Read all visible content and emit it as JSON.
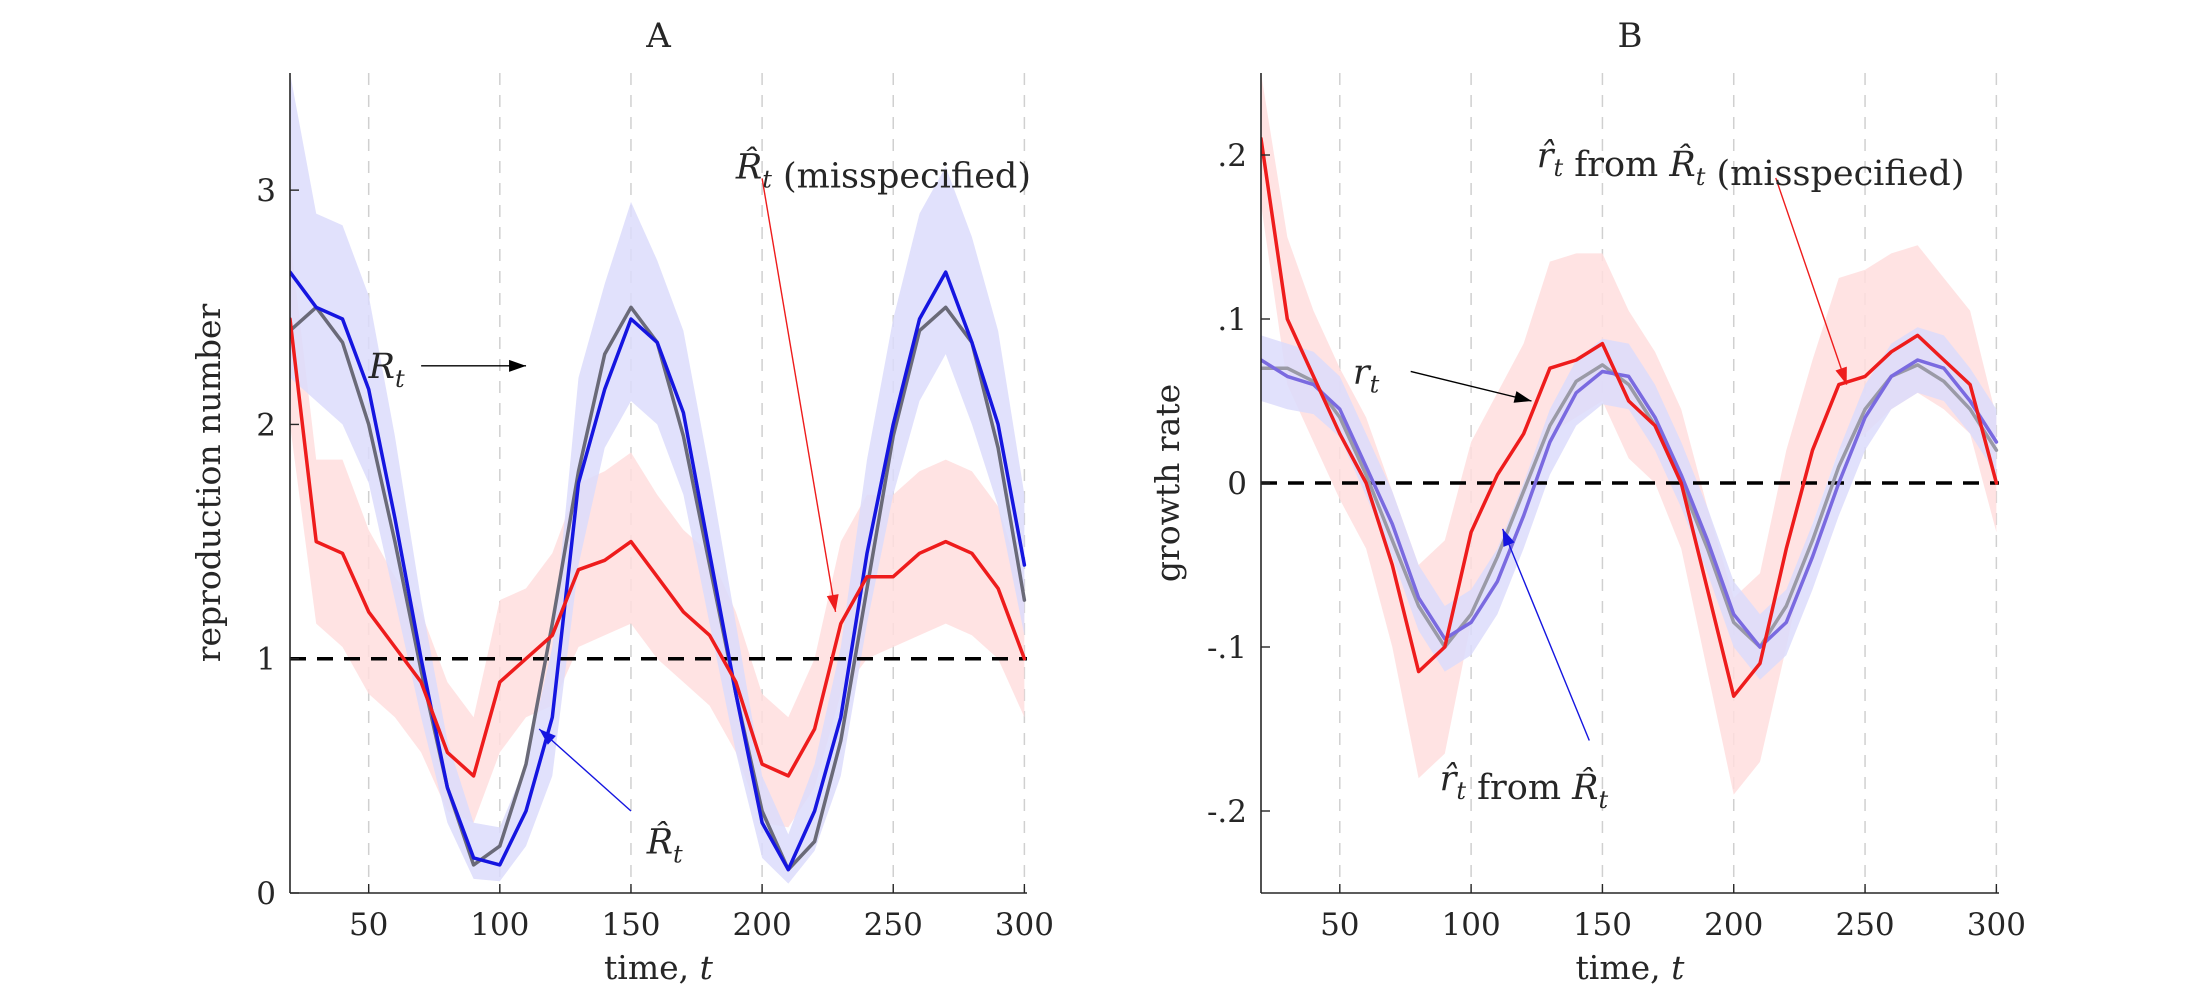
{
  "chart_data": [
    {
      "panel": "A",
      "type": "line",
      "title": "A",
      "xlabel": "time, t",
      "ylabel": "reproduction number",
      "xlim": [
        20,
        301
      ],
      "ylim": [
        0,
        3.5
      ],
      "xticks": [
        50,
        100,
        150,
        200,
        250,
        300
      ],
      "yticks": [
        0,
        1,
        2,
        3
      ],
      "vgrid": [
        50,
        100,
        150,
        200,
        250,
        300
      ],
      "grid": "dashed vertical lines",
      "reference_line": 1,
      "colors": {
        "true": "#6a6a78",
        "estimate": "#1515e0",
        "misspecified": "#ee1c1c",
        "estimate_band": "#dcdcfb",
        "misspecified_band": "#ffdede",
        "reference": "#000000"
      },
      "annotations": [
        {
          "text": "R_t",
          "target": [
            110,
            2.25
          ],
          "anchor": [
            70,
            2.25
          ],
          "color": "#000000",
          "text_pos": [
            50,
            2.25
          ]
        },
        {
          "text": "R̂_t (misspecified)",
          "target": [
            228,
            1.2
          ],
          "anchor": [
            200,
            3.05
          ],
          "color": "#ee1c1c",
          "text_pos": [
            190,
            3.1
          ]
        },
        {
          "text": "R̂_t",
          "target": [
            115,
            0.7
          ],
          "anchor": [
            150,
            0.35
          ],
          "color": "#1515e0",
          "text_pos": [
            156,
            0.22
          ]
        }
      ],
      "series": [
        {
          "role": "true",
          "x": [
            20,
            30,
            40,
            50,
            60,
            70,
            80,
            90,
            100,
            110,
            120,
            130,
            140,
            150,
            160,
            170,
            180,
            190,
            200,
            210,
            220,
            230,
            240,
            250,
            260,
            270,
            280,
            290,
            300
          ],
          "y": [
            2.4,
            2.5,
            2.35,
            2.0,
            1.5,
            0.95,
            0.45,
            0.12,
            0.2,
            0.55,
            1.15,
            1.8,
            2.3,
            2.5,
            2.35,
            1.95,
            1.4,
            0.85,
            0.35,
            0.1,
            0.22,
            0.65,
            1.3,
            1.95,
            2.4,
            2.5,
            2.35,
            1.9,
            1.25
          ]
        },
        {
          "role": "estimate",
          "x": [
            20,
            30,
            40,
            50,
            60,
            70,
            80,
            90,
            100,
            110,
            120,
            130,
            140,
            150,
            160,
            170,
            180,
            190,
            200,
            210,
            220,
            230,
            240,
            250,
            260,
            270,
            280,
            290,
            300
          ],
          "y": [
            2.65,
            2.5,
            2.45,
            2.15,
            1.6,
            1.0,
            0.45,
            0.15,
            0.12,
            0.35,
            0.75,
            1.75,
            2.15,
            2.45,
            2.35,
            2.05,
            1.45,
            0.85,
            0.3,
            0.1,
            0.35,
            0.75,
            1.45,
            2.0,
            2.45,
            2.65,
            2.35,
            2.0,
            1.4
          ],
          "band_lower": [
            2.2,
            2.1,
            2.0,
            1.75,
            1.25,
            0.75,
            0.3,
            0.06,
            0.05,
            0.2,
            0.5,
            1.4,
            1.9,
            2.1,
            2.0,
            1.7,
            1.15,
            0.6,
            0.15,
            0.04,
            0.18,
            0.5,
            1.15,
            1.7,
            2.1,
            2.3,
            2.0,
            1.65,
            1.1
          ],
          "band_upper": [
            3.5,
            2.9,
            2.85,
            2.55,
            1.95,
            1.25,
            0.65,
            0.3,
            0.28,
            0.55,
            1.05,
            2.2,
            2.6,
            2.95,
            2.7,
            2.4,
            1.8,
            1.15,
            0.5,
            0.25,
            0.55,
            1.05,
            1.85,
            2.45,
            2.9,
            3.1,
            2.8,
            2.4,
            1.7
          ]
        },
        {
          "role": "misspecified",
          "x": [
            20,
            30,
            40,
            50,
            60,
            70,
            80,
            90,
            100,
            110,
            120,
            130,
            140,
            150,
            160,
            170,
            180,
            190,
            200,
            210,
            220,
            230,
            240,
            250,
            260,
            270,
            280,
            290,
            300
          ],
          "y": [
            2.45,
            1.5,
            1.45,
            1.2,
            1.05,
            0.9,
            0.6,
            0.5,
            0.9,
            1.0,
            1.1,
            1.38,
            1.42,
            1.5,
            1.35,
            1.2,
            1.1,
            0.9,
            0.55,
            0.5,
            0.7,
            1.15,
            1.35,
            1.35,
            1.45,
            1.5,
            1.45,
            1.3,
            1.0
          ],
          "band_lower": [
            2.0,
            1.15,
            1.05,
            0.85,
            0.75,
            0.6,
            0.35,
            0.3,
            0.6,
            0.75,
            0.8,
            1.05,
            1.1,
            1.15,
            1.0,
            0.9,
            0.8,
            0.6,
            0.3,
            0.28,
            0.45,
            0.85,
            1.0,
            1.05,
            1.1,
            1.15,
            1.1,
            1.0,
            0.75
          ],
          "band_upper": [
            2.8,
            1.85,
            1.85,
            1.55,
            1.35,
            1.2,
            0.9,
            0.75,
            1.25,
            1.3,
            1.45,
            1.75,
            1.8,
            1.88,
            1.7,
            1.55,
            1.45,
            1.2,
            0.85,
            0.75,
            1.0,
            1.5,
            1.7,
            1.7,
            1.8,
            1.85,
            1.8,
            1.65,
            1.3
          ]
        }
      ]
    },
    {
      "panel": "B",
      "type": "line",
      "title": "B",
      "xlabel": "time, t",
      "ylabel": "growth rate",
      "xlim": [
        20,
        301
      ],
      "ylim": [
        -0.25,
        0.25
      ],
      "xticks": [
        50,
        100,
        150,
        200,
        250,
        300
      ],
      "yticks": [
        -0.2,
        -0.1,
        0,
        0.1,
        0.2
      ],
      "vgrid": [
        50,
        100,
        150,
        200,
        250,
        300
      ],
      "grid": "dashed vertical lines",
      "reference_line": 0,
      "colors": {
        "true": "#9a9aa6",
        "estimate": "#7a6ae0",
        "misspecified": "#ee1c1c",
        "estimate_band": "#dcdcfb",
        "misspecified_band": "#ffdede",
        "reference": "#000000"
      },
      "annotations": [
        {
          "text": "r_t",
          "target": [
            123,
            0.05
          ],
          "anchor": [
            77,
            0.068
          ],
          "color": "#000000",
          "text_pos": [
            55,
            0.068
          ]
        },
        {
          "text": "r̂_t from R̂_t (misspecified)",
          "target": [
            243,
            0.06
          ],
          "anchor": [
            216,
            0.186
          ],
          "color": "#ee1c1c",
          "text_pos": [
            125,
            0.2
          ]
        },
        {
          "text": "r̂_t from R̂_t",
          "target": [
            112,
            -0.028
          ],
          "anchor": [
            145,
            -0.157
          ],
          "color": "#1515e0",
          "text_pos": [
            88,
            -0.18
          ]
        }
      ],
      "series": [
        {
          "role": "true",
          "x": [
            20,
            30,
            40,
            50,
            60,
            70,
            80,
            90,
            100,
            110,
            120,
            130,
            140,
            150,
            160,
            170,
            180,
            190,
            200,
            210,
            220,
            230,
            240,
            250,
            260,
            270,
            280,
            290,
            300
          ],
          "y": [
            0.07,
            0.07,
            0.062,
            0.04,
            0.005,
            -0.035,
            -0.075,
            -0.1,
            -0.08,
            -0.045,
            -0.005,
            0.035,
            0.062,
            0.072,
            0.06,
            0.035,
            0.0,
            -0.04,
            -0.085,
            -0.1,
            -0.075,
            -0.035,
            0.01,
            0.045,
            0.065,
            0.072,
            0.062,
            0.045,
            0.02
          ]
        },
        {
          "role": "estimate",
          "x": [
            20,
            30,
            40,
            50,
            60,
            70,
            80,
            90,
            100,
            110,
            120,
            130,
            140,
            150,
            160,
            170,
            180,
            190,
            200,
            210,
            220,
            230,
            240,
            250,
            260,
            270,
            280,
            290,
            300
          ],
          "y": [
            0.075,
            0.065,
            0.06,
            0.045,
            0.01,
            -0.025,
            -0.07,
            -0.095,
            -0.085,
            -0.06,
            -0.02,
            0.025,
            0.055,
            0.068,
            0.065,
            0.04,
            0.005,
            -0.035,
            -0.08,
            -0.1,
            -0.085,
            -0.045,
            0.0,
            0.04,
            0.065,
            0.075,
            0.07,
            0.05,
            0.025
          ],
          "band_lower": [
            0.05,
            0.045,
            0.042,
            0.028,
            -0.008,
            -0.045,
            -0.09,
            -0.115,
            -0.105,
            -0.08,
            -0.04,
            0.005,
            0.035,
            0.048,
            0.045,
            0.02,
            -0.015,
            -0.055,
            -0.1,
            -0.12,
            -0.105,
            -0.065,
            -0.02,
            0.02,
            0.045,
            0.055,
            0.05,
            0.03,
            0.005
          ],
          "band_upper": [
            0.09,
            0.085,
            0.08,
            0.065,
            0.03,
            -0.005,
            -0.05,
            -0.075,
            -0.065,
            -0.04,
            0.0,
            0.045,
            0.075,
            0.088,
            0.085,
            0.06,
            0.025,
            -0.015,
            -0.06,
            -0.08,
            -0.065,
            -0.025,
            0.02,
            0.06,
            0.085,
            0.095,
            0.09,
            0.07,
            0.045
          ]
        },
        {
          "role": "misspecified",
          "x": [
            20,
            30,
            40,
            50,
            60,
            70,
            80,
            90,
            100,
            110,
            120,
            130,
            140,
            150,
            160,
            170,
            180,
            190,
            200,
            210,
            220,
            230,
            240,
            250,
            260,
            270,
            280,
            290,
            300
          ],
          "y": [
            0.21,
            0.1,
            0.065,
            0.03,
            0.0,
            -0.05,
            -0.115,
            -0.1,
            -0.03,
            0.005,
            0.03,
            0.07,
            0.075,
            0.085,
            0.05,
            0.035,
            0.0,
            -0.065,
            -0.13,
            -0.11,
            -0.04,
            0.02,
            0.06,
            0.065,
            0.08,
            0.09,
            0.075,
            0.06,
            0.0
          ],
          "band_lower": [
            0.17,
            0.06,
            0.025,
            -0.01,
            -0.04,
            -0.1,
            -0.18,
            -0.165,
            -0.085,
            -0.04,
            -0.01,
            0.03,
            0.04,
            0.05,
            0.015,
            0.0,
            -0.04,
            -0.115,
            -0.19,
            -0.17,
            -0.1,
            -0.025,
            0.02,
            0.03,
            0.045,
            0.055,
            0.045,
            0.03,
            -0.03
          ],
          "band_upper": [
            0.25,
            0.15,
            0.105,
            0.07,
            0.04,
            -0.005,
            -0.05,
            -0.035,
            0.025,
            0.055,
            0.085,
            0.135,
            0.14,
            0.14,
            0.105,
            0.08,
            0.045,
            -0.015,
            -0.07,
            -0.055,
            0.02,
            0.075,
            0.125,
            0.13,
            0.14,
            0.145,
            0.125,
            0.105,
            0.04
          ]
        }
      ]
    }
  ]
}
